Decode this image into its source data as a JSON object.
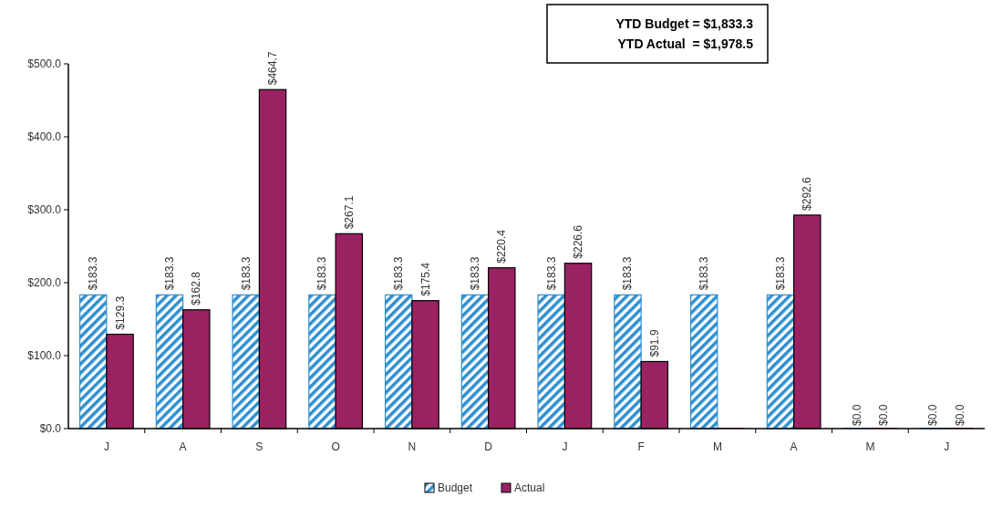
{
  "chart_data": {
    "type": "bar",
    "categories": [
      "J",
      "A",
      "S",
      "O",
      "N",
      "D",
      "J",
      "F",
      "M",
      "A",
      "M",
      "J"
    ],
    "series": [
      {
        "name": "Budget",
        "color": "#2e8fcf",
        "values": [
          183.3,
          183.3,
          183.3,
          183.3,
          183.3,
          183.3,
          183.3,
          183.3,
          183.3,
          183.3,
          0,
          0
        ],
        "value_labels": [
          "$183.3",
          "$183.3",
          "$183.3",
          "$183.3",
          "$183.3",
          "$183.3",
          "$183.3",
          "$183.3",
          "$183.3",
          "$183.3",
          "$0.0",
          "$0.0"
        ]
      },
      {
        "name": "Actual",
        "color": "#9b2262",
        "values": [
          129.3,
          162.8,
          464.7,
          267.1,
          175.4,
          220.4,
          226.6,
          91.9,
          0,
          292.6,
          0,
          0
        ],
        "value_labels": [
          "$129.3",
          "$162.8",
          "$464.7",
          "$267.1",
          "$175.4",
          "$220.4",
          "$226.6",
          "$91.9",
          null,
          "$292.6",
          "$0.0",
          "$0.0"
        ]
      }
    ],
    "ylim": [
      0,
      500
    ],
    "yticks": [
      {
        "value": 0,
        "label": "$0.0"
      },
      {
        "value": 100,
        "label": "$100.0"
      },
      {
        "value": 200,
        "label": "$200.0"
      },
      {
        "value": 300,
        "label": "$300.0"
      },
      {
        "value": 400,
        "label": "$400.0"
      },
      {
        "value": 500,
        "label": "$500.0"
      }
    ],
    "annotations": [
      "YTD Budget = $1,833.3",
      "YTD Actual  = $1,978.5"
    ],
    "legend": "bottom",
    "grid": false
  }
}
